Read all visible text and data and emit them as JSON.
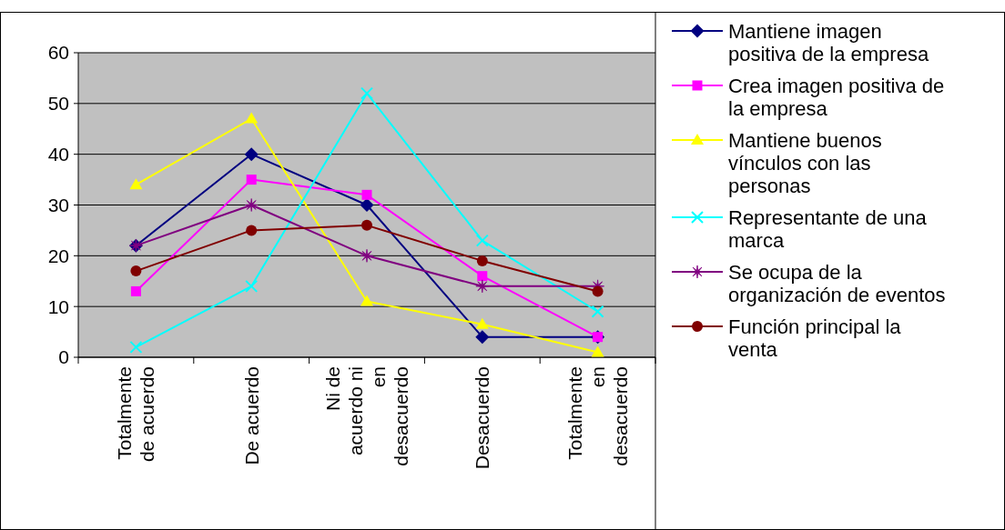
{
  "chart_data": {
    "type": "line",
    "categories": [
      "Totalmente de acuerdo",
      "De acuerdo",
      "Ni de acuerdo ni en desacuerdo",
      "Desacuerdo",
      "Totalmente en desacuerdo"
    ],
    "series": [
      {
        "name": "Mantiene imagen positiva de la empresa",
        "color": "#000080",
        "marker": "diamond",
        "values": [
          22,
          40,
          30,
          4,
          4
        ]
      },
      {
        "name": "Crea imagen positiva de la empresa",
        "color": "#ff00ff",
        "marker": "square",
        "values": [
          13,
          35,
          32,
          16,
          4
        ]
      },
      {
        "name": "Mantiene buenos vínculos con las personas",
        "color": "#ffff00",
        "marker": "triangle",
        "values": [
          34,
          47,
          11,
          6.5,
          1
        ]
      },
      {
        "name": "Representante de una marca",
        "color": "#00ffff",
        "marker": "cross",
        "values": [
          2,
          14,
          52,
          23,
          9
        ]
      },
      {
        "name": "Se ocupa de la organización de eventos",
        "color": "#800080",
        "marker": "star",
        "values": [
          22,
          30,
          20,
          14,
          14
        ]
      },
      {
        "name": "Función principal la venta",
        "color": "#800000",
        "marker": "circle",
        "values": [
          17,
          25,
          26,
          19,
          13
        ]
      }
    ],
    "ylim": [
      0,
      60
    ],
    "yticks": [
      0,
      10,
      20,
      30,
      40,
      50,
      60
    ],
    "grid": "y",
    "legend": "right"
  }
}
